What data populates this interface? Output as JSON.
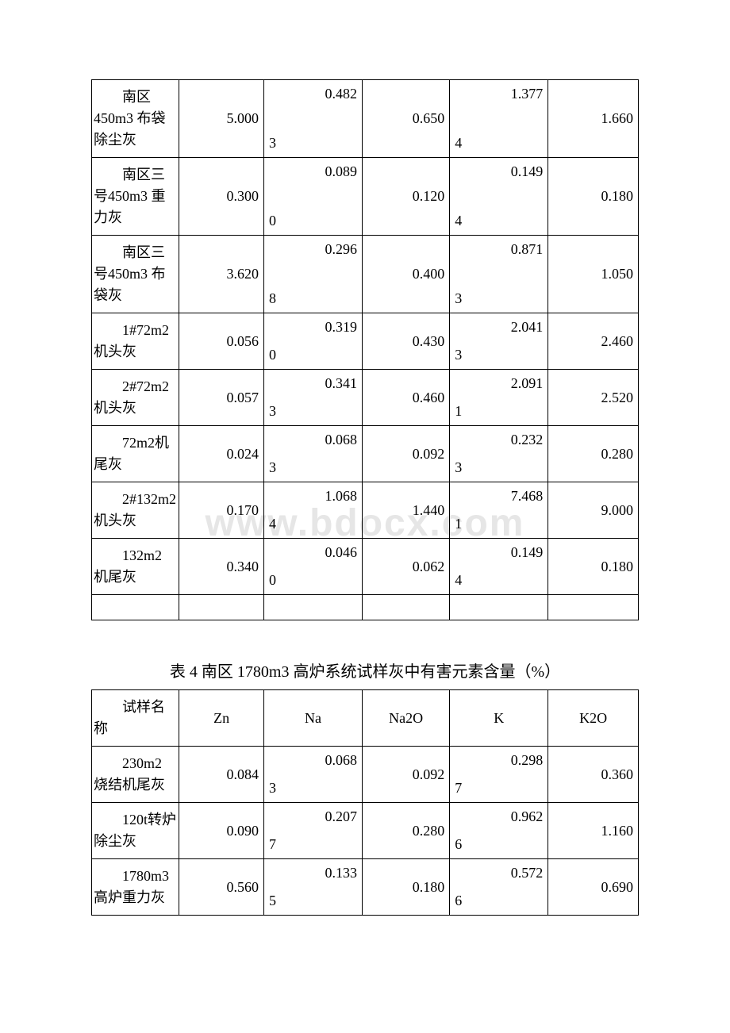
{
  "watermark": "www.bdocx.com",
  "table1": {
    "columns_widths": [
      "16%",
      "15.5%",
      "18%",
      "16%",
      "18%",
      "16.5%"
    ],
    "rows": [
      {
        "label": "南区450m3 布袋除尘灰",
        "c2": "5.000",
        "c3_left": "3",
        "c3_right": "0.482",
        "c4": "0.650",
        "c5_left": "4",
        "c5_right": "1.377",
        "c6": "1.660"
      },
      {
        "label": "南区三号450m3 重力灰",
        "c2": "0.300",
        "c3_left": "0",
        "c3_right": "0.089",
        "c4": "0.120",
        "c5_left": "4",
        "c5_right": "0.149",
        "c6": "0.180"
      },
      {
        "label": "南区三号450m3 布袋灰",
        "c2": "3.620",
        "c3_left": "8",
        "c3_right": "0.296",
        "c4": "0.400",
        "c5_left": "3",
        "c5_right": "0.871",
        "c6": "1.050"
      },
      {
        "label": "1#72m2 机头灰",
        "c2": "0.056",
        "c3_left": "0",
        "c3_right": "0.319",
        "c4": "0.430",
        "c5_left": "3",
        "c5_right": "2.041",
        "c6": "2.460"
      },
      {
        "label": "2#72m2 机头灰",
        "c2": "0.057",
        "c3_left": "3",
        "c3_right": "0.341",
        "c4": "0.460",
        "c5_left": "1",
        "c5_right": "2.091",
        "c6": "2.520"
      },
      {
        "label": "72m2机尾灰",
        "c2": "0.024",
        "c3_left": "3",
        "c3_right": "0.068",
        "c4": "0.092",
        "c5_left": "3",
        "c5_right": "0.232",
        "c6": "0.280"
      },
      {
        "label": "2#132m2 机头灰",
        "c2": "0.170",
        "c3_left": "4",
        "c3_right": "1.068",
        "c4": "1.440",
        "c5_left": "1",
        "c5_right": "7.468",
        "c6": "9.000"
      },
      {
        "label": "132m2 机尾灰",
        "c2": "0.340",
        "c3_left": "0",
        "c3_right": "0.046",
        "c4": "0.062",
        "c5_left": "4",
        "c5_right": "0.149",
        "c6": "0.180"
      }
    ]
  },
  "table2": {
    "caption": "表 4 南区 1780m3 高炉系统试样灰中有害元素含量（%）",
    "headers": {
      "c1": "试样名称",
      "c2": "Zn",
      "c3": "Na",
      "c4": "Na2O",
      "c5": "K",
      "c6": "K2O"
    },
    "rows": [
      {
        "label": "230m2 烧结机尾灰",
        "c2": "0.084",
        "c3_left": "3",
        "c3_right": "0.068",
        "c4": "0.092",
        "c5_left": "7",
        "c5_right": "0.298",
        "c6": "0.360"
      },
      {
        "label": "120t转炉除尘灰",
        "c2": "0.090",
        "c3_left": "7",
        "c3_right": "0.207",
        "c4": "0.280",
        "c5_left": "6",
        "c5_right": "0.962",
        "c6": "1.160"
      },
      {
        "label": "1780m3 高炉重力灰",
        "c2": "0.560",
        "c3_left": "5",
        "c3_right": "0.133",
        "c4": "0.180",
        "c5_left": "6",
        "c5_right": "0.572",
        "c6": "0.690"
      }
    ]
  }
}
